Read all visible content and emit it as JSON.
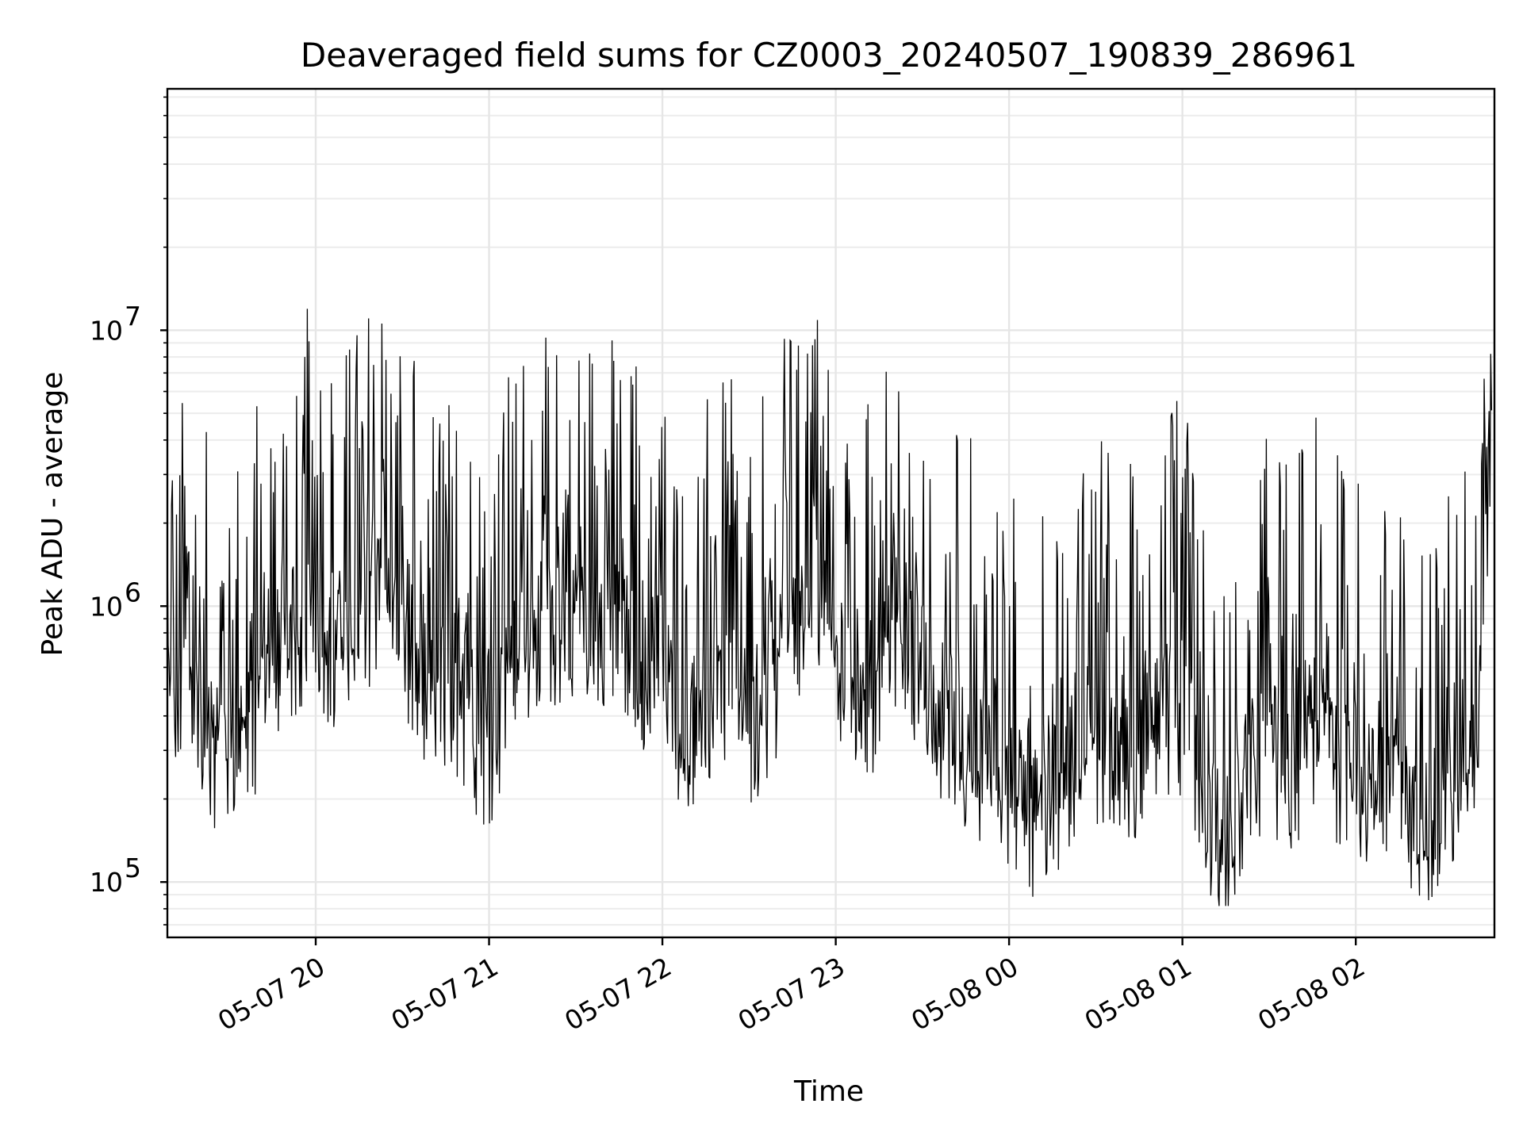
{
  "chart_data": {
    "type": "line",
    "title": "Deaveraged field sums for CZ0003_20240507_190839_286961",
    "xlabel": "Time",
    "ylabel": "Peak ADU - average",
    "yscale": "log",
    "ylim": [
      63000,
      75000000
    ],
    "xlim": [
      "2024-05-07 19:08:39",
      "2024-05-08 02:48:00"
    ],
    "x_ticks": [
      {
        "value": "2024-05-07 20:00",
        "label": "05-07 20"
      },
      {
        "value": "2024-05-07 21:00",
        "label": "05-07 21"
      },
      {
        "value": "2024-05-07 22:00",
        "label": "05-07 22"
      },
      {
        "value": "2024-05-07 23:00",
        "label": "05-07 23"
      },
      {
        "value": "2024-05-08 00:00",
        "label": "05-08 00"
      },
      {
        "value": "2024-05-08 01:00",
        "label": "05-08 01"
      },
      {
        "value": "2024-05-08 02:00",
        "label": "05-08 02"
      }
    ],
    "y_ticks": [
      {
        "value": 100000,
        "base": "10",
        "exp": "5"
      },
      {
        "value": 1000000,
        "base": "10",
        "exp": "6"
      },
      {
        "value": 10000000,
        "base": "10",
        "exp": "7"
      }
    ],
    "grid": true,
    "line_color": "#000000",
    "series": [
      {
        "x": [
          "2024-05-07 19:08:39",
          "2024-05-07 19:13",
          "2024-05-07 19:18",
          "2024-05-07 19:23",
          "2024-05-07 19:28",
          "2024-05-07 19:33",
          "2024-05-07 19:38",
          "2024-05-07 19:43",
          "2024-05-07 19:48",
          "2024-05-07 19:53",
          "2024-05-07 19:58",
          "2024-05-07 20:03",
          "2024-05-07 20:08",
          "2024-05-07 20:13",
          "2024-05-07 20:18",
          "2024-05-07 20:23",
          "2024-05-07 20:28",
          "2024-05-07 20:33",
          "2024-05-07 20:38",
          "2024-05-07 20:43",
          "2024-05-07 20:48",
          "2024-05-07 20:53",
          "2024-05-07 20:58",
          "2024-05-07 21:03",
          "2024-05-07 21:08",
          "2024-05-07 21:13",
          "2024-05-07 21:18",
          "2024-05-07 21:23",
          "2024-05-07 21:28",
          "2024-05-07 21:33",
          "2024-05-07 21:38",
          "2024-05-07 21:43",
          "2024-05-07 21:48",
          "2024-05-07 21:53",
          "2024-05-07 21:58",
          "2024-05-07 22:03",
          "2024-05-07 22:08",
          "2024-05-07 22:13",
          "2024-05-07 22:18",
          "2024-05-07 22:23",
          "2024-05-07 22:28",
          "2024-05-07 22:33",
          "2024-05-07 22:38",
          "2024-05-07 22:43",
          "2024-05-07 22:48",
          "2024-05-07 22:53",
          "2024-05-07 22:58",
          "2024-05-07 23:03",
          "2024-05-07 23:08",
          "2024-05-07 23:13",
          "2024-05-07 23:18",
          "2024-05-07 23:23",
          "2024-05-07 23:28",
          "2024-05-07 23:33",
          "2024-05-07 23:38",
          "2024-05-07 23:43",
          "2024-05-07 23:48",
          "2024-05-07 23:53",
          "2024-05-07 23:58",
          "2024-05-08 00:03",
          "2024-05-08 00:08",
          "2024-05-08 00:13",
          "2024-05-08 00:18",
          "2024-05-08 00:23",
          "2024-05-08 00:28",
          "2024-05-08 00:33",
          "2024-05-08 00:38",
          "2024-05-08 00:43",
          "2024-05-08 00:48",
          "2024-05-08 00:53",
          "2024-05-08 00:58",
          "2024-05-08 01:03",
          "2024-05-08 01:08",
          "2024-05-08 01:13",
          "2024-05-08 01:18",
          "2024-05-08 01:23",
          "2024-05-08 01:28",
          "2024-05-08 01:33",
          "2024-05-08 01:38",
          "2024-05-08 01:43",
          "2024-05-08 01:48",
          "2024-05-08 01:53",
          "2024-05-08 01:58",
          "2024-05-08 02:03",
          "2024-05-08 02:08",
          "2024-05-08 02:13",
          "2024-05-08 02:18",
          "2024-05-08 02:23",
          "2024-05-08 02:28",
          "2024-05-08 02:33",
          "2024-05-08 02:38",
          "2024-05-08 02:43",
          "2024-05-08 02:47"
        ],
        "y": [
          1000000,
          900000,
          700000,
          600000,
          650000,
          600000,
          700000,
          1200000,
          1300000,
          1500000,
          1800000,
          1600000,
          1200000,
          1500000,
          2000000,
          2200000,
          1900000,
          1400000,
          1000000,
          900000,
          1000000,
          800000,
          600000,
          700000,
          1200000,
          1500000,
          1800000,
          1500000,
          1400000,
          1600000,
          1500000,
          1700000,
          1400000,
          1100000,
          1200000,
          800000,
          700000,
          800000,
          900000,
          1000000,
          700000,
          800000,
          1000000,
          1500000,
          1800000,
          2000000,
          1700000,
          1000000,
          900000,
          900000,
          1300000,
          1800000,
          1200000,
          800000,
          700000,
          600000,
          600000,
          500000,
          450000,
          400000,
          350000,
          400000,
          450000,
          500000,
          550000,
          600000,
          550000,
          500000,
          600000,
          700000,
          800000,
          700000,
          300000,
          250000,
          300000,
          500000,
          600000,
          550000,
          500000,
          650000,
          700000,
          550000,
          500000,
          400000,
          350000,
          350000,
          300000,
          300000,
          350000,
          400000,
          500000,
          600000,
          1000000
        ]
      }
    ],
    "jitter_range_decades": [
      -0.6,
      0.85
    ],
    "samples": 1600
  }
}
